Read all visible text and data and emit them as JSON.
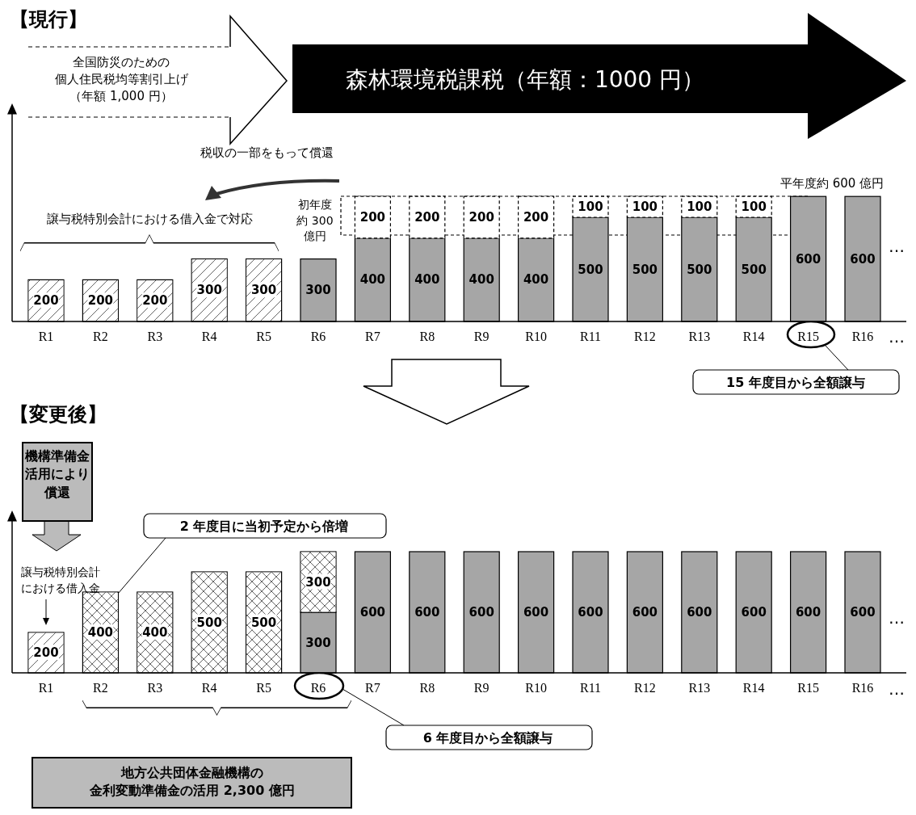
{
  "chart_data": [
    {
      "type": "bar",
      "title": "【現行】",
      "stacked": true,
      "data_labels": true,
      "categories": [
        "R1",
        "R2",
        "R3",
        "R4",
        "R5",
        "R6",
        "R7",
        "R8",
        "R9",
        "R10",
        "R11",
        "R12",
        "R13",
        "R14",
        "R15",
        "R16"
      ],
      "series": [
        {
          "color": "#ffffff",
          "values": [
            200,
            200,
            200,
            300,
            300,
            null,
            null,
            null,
            null,
            null,
            null,
            null,
            null,
            null,
            null,
            null
          ]
        },
        {
          "color": "#a6a6a6",
          "values": [
            null,
            null,
            null,
            null,
            null,
            300,
            400,
            400,
            400,
            400,
            500,
            500,
            500,
            500,
            600,
            600
          ]
        },
        {
          "color": "#ffffff",
          "line_style": "dashed",
          "values": [
            null,
            null,
            null,
            null,
            null,
            null,
            200,
            200,
            200,
            200,
            100,
            100,
            100,
            100,
            null,
            null
          ]
        }
      ],
      "annotations": [
        "全国防災のための個人住民税均等割引上げ（年額 1,000 円）",
        "森林環境税課税（年額：1000 円）",
        "税収の一部をもって償還",
        "譲与税特別会計における借入金で対応",
        "初年度約 300 億円",
        "平年度約 600 億円",
        "15 年度目から全額譲与",
        "…",
        "…"
      ]
    },
    {
      "type": "bar",
      "title": "【変更後】",
      "stacked": true,
      "data_labels": true,
      "categories": [
        "R1",
        "R2",
        "R3",
        "R4",
        "R5",
        "R6",
        "R7",
        "R8",
        "R9",
        "R10",
        "R11",
        "R12",
        "R13",
        "R14",
        "R15",
        "R16"
      ],
      "series": [
        {
          "color": "#ffffff",
          "values": [
            200,
            null,
            null,
            null,
            null,
            null,
            null,
            null,
            null,
            null,
            null,
            null,
            null,
            null,
            null,
            null
          ]
        },
        {
          "color": "#a6a6a6",
          "values": [
            null,
            null,
            null,
            null,
            null,
            300,
            600,
            600,
            600,
            600,
            600,
            600,
            600,
            600,
            600,
            600
          ]
        },
        {
          "color": "#ffffff",
          "values": [
            null,
            400,
            400,
            500,
            500,
            300,
            null,
            null,
            null,
            null,
            null,
            null,
            null,
            null,
            null,
            null
          ]
        }
      ],
      "annotations": [
        "機構準備金活用により償還",
        "2 年度目に当初予定から倍増",
        "譲与税特別会計における借入金",
        "…",
        "…",
        "6 年度目から全額譲与",
        "地方公共団体金融機構の金利変動準備金の活用 2,300 億円"
      ]
    }
  ]
}
